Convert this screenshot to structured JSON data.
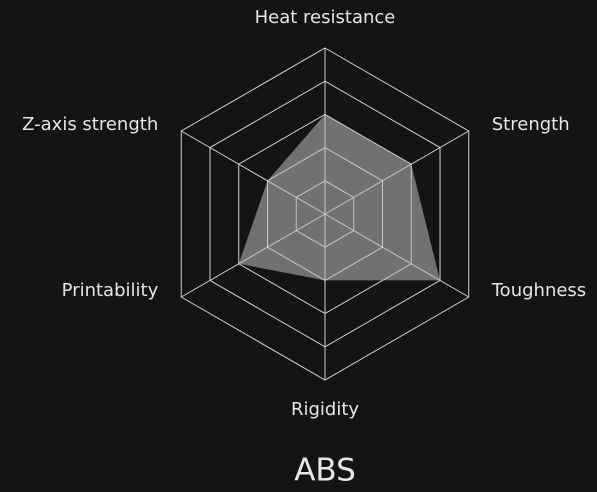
{
  "chart_data": {
    "type": "radar",
    "title": "ABS",
    "categories": [
      "Heat resistance",
      "Strength",
      "Toughness",
      "Rigidity",
      "Printability",
      "Z-axis strength"
    ],
    "values": [
      3,
      3,
      4,
      2,
      3,
      2
    ],
    "color": "#bdbdbd",
    "rlim": [
      0,
      5
    ],
    "rticks": [
      1,
      2,
      3,
      4,
      5
    ],
    "grid": true
  }
}
